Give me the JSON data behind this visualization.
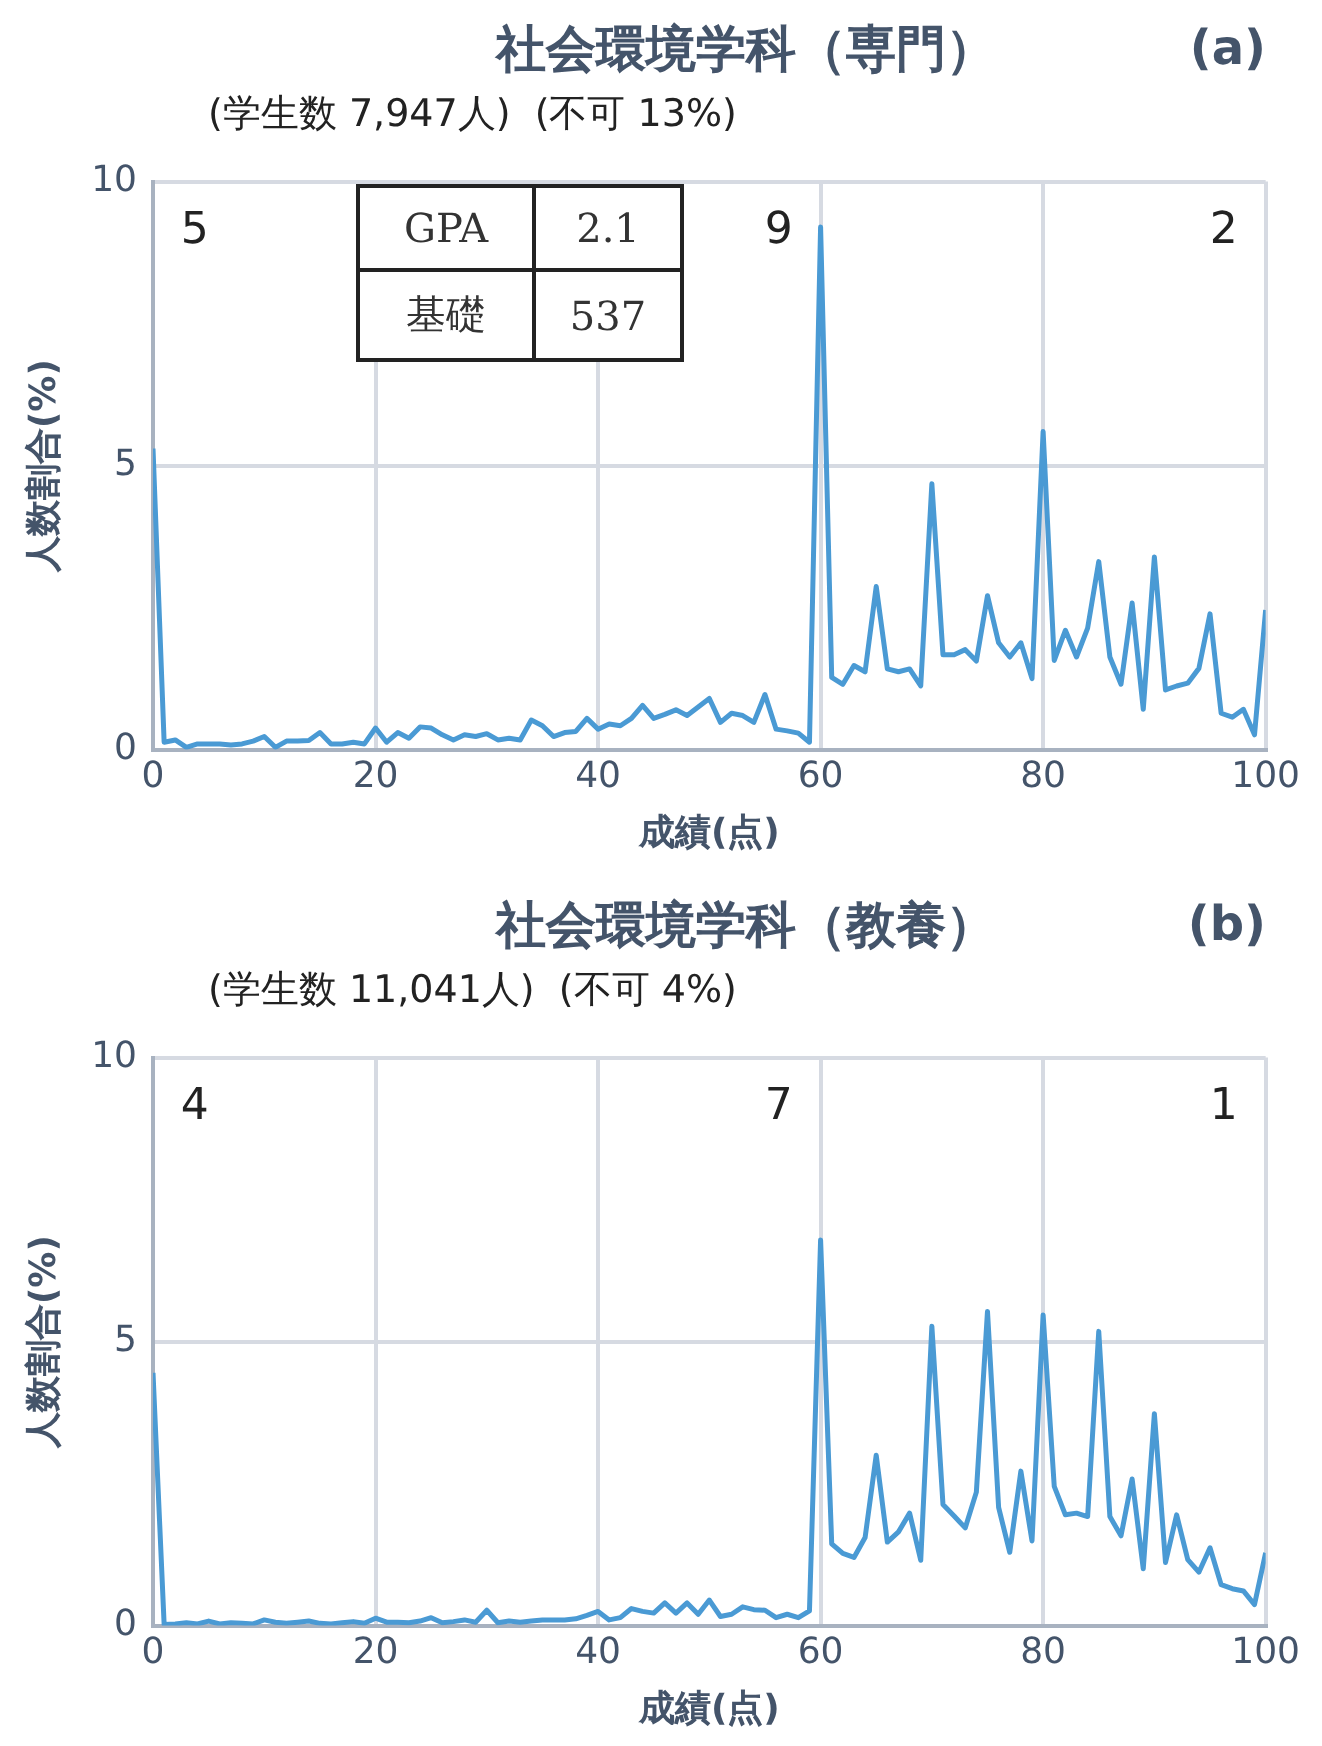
{
  "chart_data": [
    {
      "type": "line",
      "title": "社会環境学科（専門）",
      "subtitle": "(学生数 7,947人)  (不可 13%)",
      "xlabel": "成績(点)",
      "ylabel": "人数割合(%)",
      "annotations": [
        "(a)",
        "5",
        "9",
        "2",
        "GPA",
        "2.1",
        "基礎",
        "537"
      ],
      "x": [
        0,
        1,
        2,
        3,
        4,
        5,
        6,
        7,
        8,
        9,
        10,
        11,
        12,
        13,
        14,
        15,
        16,
        17,
        18,
        19,
        20,
        21,
        22,
        23,
        24,
        25,
        26,
        27,
        28,
        29,
        30,
        31,
        32,
        33,
        34,
        35,
        36,
        37,
        38,
        39,
        40,
        41,
        42,
        43,
        44,
        45,
        46,
        47,
        48,
        49,
        50,
        51,
        52,
        53,
        54,
        55,
        56,
        57,
        58,
        59,
        60,
        61,
        62,
        63,
        64,
        65,
        66,
        67,
        68,
        69,
        70,
        71,
        72,
        73,
        74,
        75,
        76,
        77,
        78,
        79,
        80,
        81,
        82,
        83,
        84,
        85,
        86,
        87,
        88,
        89,
        90,
        91,
        92,
        93,
        94,
        95,
        96,
        97,
        98,
        99,
        100
      ],
      "series": [
        {
          "color": "#4a9ad4",
          "values": [
            5.3,
            0.13,
            0.17,
            0.04,
            0.1,
            0.1,
            0.1,
            0.08,
            0.1,
            0.15,
            0.23,
            0.04,
            0.15,
            0.15,
            0.16,
            0.3,
            0.1,
            0.1,
            0.13,
            0.1,
            0.38,
            0.13,
            0.3,
            0.2,
            0.4,
            0.38,
            0.26,
            0.17,
            0.26,
            0.23,
            0.28,
            0.17,
            0.2,
            0.17,
            0.52,
            0.42,
            0.23,
            0.3,
            0.32,
            0.55,
            0.36,
            0.45,
            0.42,
            0.55,
            0.78,
            0.55,
            0.62,
            0.7,
            0.6,
            0.75,
            0.9,
            0.48,
            0.64,
            0.6,
            0.48,
            0.97,
            0.36,
            0.33,
            0.29,
            0.13,
            9.2,
            1.27,
            1.15,
            1.48,
            1.37,
            2.87,
            1.42,
            1.37,
            1.42,
            1.12,
            4.68,
            1.67,
            1.67,
            1.76,
            1.56,
            2.71,
            1.88,
            1.63,
            1.88,
            1.25,
            5.6,
            1.57,
            2.1,
            1.63,
            2.14,
            3.31,
            1.63,
            1.15,
            2.58,
            0.71,
            3.39,
            1.05,
            1.12,
            1.17,
            1.43,
            2.39,
            0.64,
            0.57,
            0.71,
            0.26,
            2.46
          ]
        }
      ],
      "xlim": [
        0,
        100
      ],
      "xticks": [
        0,
        20,
        40,
        60,
        80,
        100
      ],
      "ylim": [
        0,
        10
      ],
      "yticks": [
        0,
        5,
        10
      ],
      "grid": true,
      "legend": false,
      "marker": "none",
      "line_style": "solid"
    },
    {
      "type": "line",
      "title": "社会環境学科（教養）",
      "subtitle": "(学生数 11,041人)  (不可 4%)",
      "xlabel": "成績(点)",
      "ylabel": "人数割合(%)",
      "annotations": [
        "(b)",
        "4",
        "7",
        "1"
      ],
      "x": [
        0,
        1,
        2,
        3,
        4,
        5,
        6,
        7,
        8,
        9,
        10,
        11,
        12,
        13,
        14,
        15,
        16,
        17,
        18,
        19,
        20,
        21,
        22,
        23,
        24,
        25,
        26,
        27,
        28,
        29,
        30,
        31,
        32,
        33,
        34,
        35,
        36,
        37,
        38,
        39,
        40,
        41,
        42,
        43,
        44,
        45,
        46,
        47,
        48,
        49,
        50,
        51,
        52,
        53,
        54,
        55,
        56,
        57,
        58,
        59,
        60,
        61,
        62,
        63,
        64,
        65,
        66,
        67,
        68,
        69,
        70,
        71,
        72,
        73,
        74,
        75,
        76,
        77,
        78,
        79,
        80,
        81,
        82,
        83,
        84,
        85,
        86,
        87,
        88,
        89,
        90,
        91,
        92,
        93,
        94,
        95,
        96,
        97,
        98,
        99,
        100
      ],
      "series": [
        {
          "color": "#4a9ad4",
          "values": [
            4.45,
            0.02,
            0.03,
            0.05,
            0.03,
            0.08,
            0.03,
            0.05,
            0.04,
            0.03,
            0.1,
            0.06,
            0.04,
            0.06,
            0.08,
            0.04,
            0.03,
            0.05,
            0.07,
            0.04,
            0.13,
            0.06,
            0.06,
            0.05,
            0.08,
            0.14,
            0.05,
            0.07,
            0.1,
            0.06,
            0.27,
            0.05,
            0.08,
            0.06,
            0.08,
            0.1,
            0.1,
            0.1,
            0.12,
            0.18,
            0.25,
            0.1,
            0.14,
            0.3,
            0.25,
            0.22,
            0.4,
            0.22,
            0.4,
            0.2,
            0.45,
            0.16,
            0.2,
            0.33,
            0.28,
            0.27,
            0.14,
            0.2,
            0.14,
            0.26,
            6.79,
            1.44,
            1.27,
            1.2,
            1.55,
            3.0,
            1.47,
            1.65,
            1.98,
            1.15,
            5.27,
            2.13,
            1.93,
            1.72,
            2.35,
            5.53,
            2.08,
            1.29,
            2.72,
            1.49,
            5.47,
            2.45,
            1.95,
            1.98,
            1.92,
            5.18,
            1.92,
            1.58,
            2.58,
            1.0,
            3.73,
            1.11,
            1.95,
            1.16,
            0.94,
            1.37,
            0.72,
            0.65,
            0.61,
            0.37,
            1.28
          ]
        }
      ],
      "xlim": [
        0,
        100
      ],
      "xticks": [
        0,
        20,
        40,
        60,
        80,
        100
      ],
      "ylim": [
        0,
        10
      ],
      "yticks": [
        0,
        5,
        10
      ],
      "grid": true,
      "legend": false,
      "marker": "none",
      "line_style": "solid"
    }
  ]
}
